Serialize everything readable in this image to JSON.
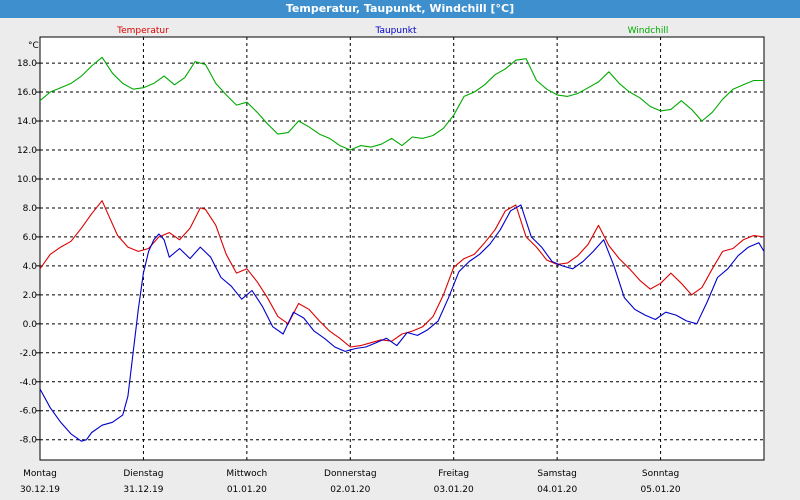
{
  "window": {
    "title": "Temperatur, Taupunkt, Windchill [°C]"
  },
  "chart_data": {
    "type": "line",
    "title": "Temperatur, Taupunkt, Windchill [°C]",
    "ylabel": "°C",
    "ylim": [
      -9.4,
      19.8
    ],
    "xlim": [
      0,
      7
    ],
    "grid": true,
    "yticks": [
      18.0,
      16.0,
      14.0,
      12.0,
      10.0,
      8.0,
      6.0,
      4.0,
      2.0,
      0.0,
      -2.0,
      -4.0,
      -6.0,
      -8.0
    ],
    "ytick_labels": [
      "18.0",
      "16.0",
      "14.0",
      "12.0",
      "10.0",
      "8.0",
      "6.0",
      "4.0",
      "2.0",
      "0.0",
      "-2.0",
      "-4.0",
      "-6.0",
      "-8.0"
    ],
    "days": [
      {
        "name": "Montag",
        "date": "30.12.19"
      },
      {
        "name": "Dienstag",
        "date": "31.12.19"
      },
      {
        "name": "Mittwoch",
        "date": "01.01.20"
      },
      {
        "name": "Donnerstag",
        "date": "02.01.20"
      },
      {
        "name": "Freitag",
        "date": "03.01.20"
      },
      {
        "name": "Samstag",
        "date": "04.01.20"
      },
      {
        "name": "Sonntag",
        "date": "05.01.20"
      }
    ],
    "series": [
      {
        "name": "Temperatur",
        "color": "#dd0000",
        "x": [
          0,
          0.1,
          0.2,
          0.3,
          0.4,
          0.5,
          0.6,
          0.65,
          0.75,
          0.85,
          0.95,
          1.05,
          1.15,
          1.25,
          1.35,
          1.45,
          1.55,
          1.6,
          1.7,
          1.8,
          1.9,
          2.0,
          2.1,
          2.2,
          2.3,
          2.4,
          2.5,
          2.6,
          2.7,
          2.8,
          2.9,
          3.0,
          3.1,
          3.2,
          3.3,
          3.4,
          3.5,
          3.6,
          3.7,
          3.8,
          3.9,
          4.0,
          4.1,
          4.2,
          4.3,
          4.4,
          4.5,
          4.6,
          4.7,
          4.8,
          4.9,
          5.0,
          5.1,
          5.2,
          5.3,
          5.4,
          5.5,
          5.6,
          5.7,
          5.8,
          5.9,
          6.0,
          6.1,
          6.2,
          6.3,
          6.4,
          6.5,
          6.6,
          6.7,
          6.8,
          6.9,
          7.0
        ],
        "values": [
          3.8,
          4.8,
          5.3,
          5.7,
          6.6,
          7.6,
          8.5,
          7.7,
          6.1,
          5.3,
          5.0,
          5.2,
          6.0,
          6.3,
          5.8,
          6.6,
          8.0,
          7.9,
          6.8,
          4.8,
          3.5,
          3.8,
          2.9,
          1.8,
          0.5,
          0.0,
          1.4,
          1.0,
          0.2,
          -0.5,
          -1.0,
          -1.6,
          -1.5,
          -1.3,
          -1.1,
          -1.2,
          -0.7,
          -0.5,
          -0.2,
          0.5,
          2.0,
          3.9,
          4.5,
          4.8,
          5.6,
          6.5,
          7.8,
          8.2,
          6.0,
          5.3,
          4.4,
          4.1,
          4.2,
          4.7,
          5.5,
          6.8,
          5.4,
          4.5,
          3.8,
          3.0,
          2.4,
          2.8,
          3.5,
          2.8,
          2.0,
          2.5,
          3.8,
          5.0,
          5.2,
          5.8,
          6.1,
          6.0
        ]
      },
      {
        "name": "Taupunkt",
        "color": "#0000cc",
        "x": [
          0,
          0.1,
          0.2,
          0.3,
          0.4,
          0.45,
          0.5,
          0.6,
          0.7,
          0.8,
          0.85,
          0.9,
          0.95,
          1.0,
          1.05,
          1.1,
          1.15,
          1.2,
          1.25,
          1.35,
          1.45,
          1.55,
          1.65,
          1.75,
          1.85,
          1.95,
          2.05,
          2.15,
          2.25,
          2.35,
          2.45,
          2.55,
          2.65,
          2.75,
          2.85,
          2.95,
          3.05,
          3.15,
          3.25,
          3.35,
          3.45,
          3.55,
          3.65,
          3.75,
          3.85,
          3.95,
          4.05,
          4.15,
          4.25,
          4.35,
          4.45,
          4.55,
          4.65,
          4.75,
          4.85,
          4.95,
          5.05,
          5.15,
          5.25,
          5.35,
          5.45,
          5.55,
          5.65,
          5.75,
          5.85,
          5.95,
          6.05,
          6.15,
          6.25,
          6.35,
          6.45,
          6.55,
          6.65,
          6.75,
          6.85,
          6.95,
          7.0
        ],
        "values": [
          -4.5,
          -5.8,
          -6.8,
          -7.6,
          -8.1,
          -8.0,
          -7.5,
          -7.0,
          -6.8,
          -6.3,
          -5.0,
          -2.0,
          1.0,
          3.5,
          5.0,
          5.8,
          6.2,
          5.8,
          4.6,
          5.2,
          4.5,
          5.3,
          4.6,
          3.2,
          2.6,
          1.7,
          2.3,
          1.2,
          -0.2,
          -0.7,
          0.8,
          0.4,
          -0.5,
          -1.0,
          -1.6,
          -1.9,
          -1.7,
          -1.6,
          -1.3,
          -1.0,
          -1.5,
          -0.6,
          -0.8,
          -0.4,
          0.2,
          1.8,
          3.6,
          4.3,
          4.8,
          5.5,
          6.5,
          7.8,
          8.2,
          6.0,
          5.3,
          4.3,
          4.0,
          3.8,
          4.3,
          5.0,
          5.8,
          4.0,
          1.8,
          1.0,
          0.6,
          0.3,
          0.8,
          0.6,
          0.2,
          0.0,
          1.5,
          3.2,
          3.8,
          4.7,
          5.3,
          5.6,
          5.0
        ]
      },
      {
        "name": "Windchill",
        "color": "#00aa00",
        "x": [
          0,
          0.1,
          0.2,
          0.3,
          0.4,
          0.5,
          0.6,
          0.7,
          0.8,
          0.9,
          1.0,
          1.1,
          1.2,
          1.3,
          1.4,
          1.5,
          1.6,
          1.7,
          1.8,
          1.9,
          2.0,
          2.1,
          2.2,
          2.3,
          2.4,
          2.5,
          2.6,
          2.7,
          2.8,
          2.9,
          3.0,
          3.1,
          3.2,
          3.3,
          3.4,
          3.5,
          3.6,
          3.7,
          3.8,
          3.9,
          4.0,
          4.1,
          4.2,
          4.3,
          4.4,
          4.5,
          4.6,
          4.7,
          4.8,
          4.9,
          5.0,
          5.1,
          5.2,
          5.3,
          5.4,
          5.5,
          5.6,
          5.7,
          5.8,
          5.9,
          6.0,
          6.1,
          6.2,
          6.3,
          6.4,
          6.5,
          6.6,
          6.7,
          6.8,
          6.9,
          7.0
        ],
        "values": [
          15.4,
          16.0,
          16.3,
          16.6,
          17.1,
          17.8,
          18.4,
          17.3,
          16.6,
          16.2,
          16.3,
          16.6,
          17.1,
          16.5,
          17.0,
          18.1,
          17.9,
          16.6,
          15.8,
          15.1,
          15.3,
          14.6,
          13.8,
          13.1,
          13.2,
          14.0,
          13.6,
          13.1,
          12.8,
          12.3,
          12.0,
          12.3,
          12.2,
          12.4,
          12.8,
          12.3,
          12.9,
          12.8,
          13.0,
          13.5,
          14.4,
          15.7,
          16.0,
          16.5,
          17.2,
          17.6,
          18.2,
          18.3,
          16.8,
          16.2,
          15.8,
          15.7,
          15.9,
          16.3,
          16.7,
          17.4,
          16.6,
          16.0,
          15.6,
          15.0,
          14.7,
          14.8,
          15.4,
          14.8,
          14.0,
          14.6,
          15.5,
          16.2,
          16.5,
          16.8,
          16.8
        ]
      }
    ]
  }
}
